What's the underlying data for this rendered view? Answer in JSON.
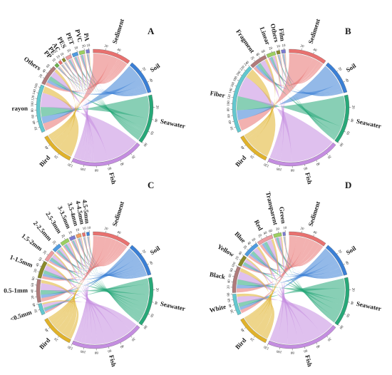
{
  "chart_data": [
    {
      "panel": "A",
      "type": "chord",
      "targets": [
        {
          "name": "Sediment",
          "color": "#e8716f",
          "total": 63,
          "ticks": [
            20,
            40
          ]
        },
        {
          "name": "Soil",
          "color": "#3a7fd5",
          "total": 57,
          "ticks": [
            20,
            40
          ]
        },
        {
          "name": "Seawater",
          "color": "#27a878",
          "total": 81,
          "ticks": [
            20,
            40,
            60,
            80
          ]
        },
        {
          "name": "Fish",
          "color": "#c48de0",
          "total": 120,
          "ticks": [
            20,
            40,
            60,
            80,
            100,
            120
          ]
        },
        {
          "name": "Bird",
          "color": "#e0b22a",
          "total": 55,
          "ticks": [
            20,
            40
          ]
        }
      ],
      "sources": [
        {
          "name": "rayon",
          "color": "#63c8cf",
          "total": 170,
          "ticks": [
            20,
            40,
            60,
            80,
            100,
            120,
            140,
            160
          ]
        },
        {
          "name": "Others",
          "color": "#b07a7a",
          "total": 72,
          "ticks": [
            20,
            40,
            60
          ]
        },
        {
          "name": "PP",
          "color": "#6ab04c",
          "total": 12,
          "ticks": [
            10
          ]
        },
        {
          "name": "PE",
          "color": "#e8716f",
          "total": 10,
          "ticks": [
            10
          ]
        },
        {
          "name": "AC",
          "color": "#8a8a2a",
          "total": 10,
          "ticks": [
            10
          ]
        },
        {
          "name": "PES",
          "color": "#ed9ca0",
          "total": 20,
          "ticks": [
            20
          ]
        },
        {
          "name": "PET",
          "color": "#4e9be0",
          "total": 20,
          "ticks": [
            20
          ]
        },
        {
          "name": "PVC",
          "color": "#9ccf60",
          "total": 20,
          "ticks": [
            20
          ]
        },
        {
          "name": "PA",
          "color": "#7b7bd0",
          "total": 12,
          "ticks": [
            10
          ]
        }
      ]
    },
    {
      "panel": "B",
      "type": "chord",
      "targets": [
        {
          "name": "Sediment",
          "color": "#e8716f",
          "total": 63,
          "ticks": [
            20,
            40
          ]
        },
        {
          "name": "Soil",
          "color": "#3a7fd5",
          "total": 57,
          "ticks": [
            20,
            40
          ]
        },
        {
          "name": "Seawater",
          "color": "#27a878",
          "total": 81,
          "ticks": [
            20,
            40,
            60,
            80
          ]
        },
        {
          "name": "Fish",
          "color": "#c48de0",
          "total": 120,
          "ticks": [
            20,
            40,
            60,
            80,
            100,
            120
          ]
        },
        {
          "name": "Bird",
          "color": "#e0b22a",
          "total": 55,
          "ticks": [
            20,
            40
          ]
        }
      ],
      "sources": [
        {
          "name": "Fiber",
          "color": "#63c8cf",
          "total": 240,
          "ticks": [
            20,
            40,
            60,
            80,
            100,
            120,
            140,
            160,
            180,
            200,
            220,
            240
          ]
        },
        {
          "name": "Fragment",
          "color": "#b07a7a",
          "total": 60,
          "ticks": [
            20,
            40,
            60
          ]
        },
        {
          "name": "Linear",
          "color": "#9ccf60",
          "total": 30,
          "ticks": [
            20
          ]
        },
        {
          "name": "Others",
          "color": "#8a8a2a",
          "total": 12,
          "ticks": [
            10
          ]
        },
        {
          "name": "Film",
          "color": "#7b7bd0",
          "total": 14,
          "ticks": [
            10
          ]
        }
      ]
    },
    {
      "panel": "C",
      "type": "chord",
      "targets": [
        {
          "name": "Sediment",
          "color": "#e8716f",
          "total": 63,
          "ticks": [
            20,
            40
          ]
        },
        {
          "name": "Soil",
          "color": "#3a7fd5",
          "total": 57,
          "ticks": [
            20,
            40
          ]
        },
        {
          "name": "Seawater",
          "color": "#27a878",
          "total": 81,
          "ticks": [
            20,
            40,
            60,
            80
          ]
        },
        {
          "name": "Fish",
          "color": "#c48de0",
          "total": 120,
          "ticks": [
            20,
            40,
            60,
            80,
            100,
            120
          ]
        },
        {
          "name": "Bird",
          "color": "#e0b22a",
          "total": 55,
          "ticks": [
            20,
            40
          ]
        }
      ],
      "sources": [
        {
          "name": "<0.5mm",
          "color": "#63c8cf",
          "total": 40,
          "ticks": [
            20,
            40
          ]
        },
        {
          "name": "0.5-1mm",
          "color": "#b07a7a",
          "total": 81,
          "ticks": [
            20,
            40,
            60,
            80
          ]
        },
        {
          "name": "1-1.5mm",
          "color": "#8a8a2a",
          "total": 61,
          "ticks": [
            20,
            40,
            60
          ]
        },
        {
          "name": "1.5-2mm",
          "color": "#ed9ca0",
          "total": 39,
          "ticks": [
            20
          ]
        },
        {
          "name": "2-2.5mm",
          "color": "#4e9be0",
          "total": 30,
          "ticks": [
            20
          ]
        },
        {
          "name": "2.5-3mm",
          "color": "#9ccf60",
          "total": 30,
          "ticks": [
            20
          ]
        },
        {
          "name": "3-3.5mm",
          "color": "#7b7bd0",
          "total": 20,
          "ticks": [
            10
          ]
        },
        {
          "name": "3.5-4mm",
          "color": "#f0a060",
          "total": 17,
          "ticks": [
            10
          ]
        },
        {
          "name": "4-4.5mm",
          "color": "#e8716f",
          "total": 10,
          "ticks": [
            10
          ]
        },
        {
          "name": "4.5-5mm",
          "color": "#3a7fd5",
          "total": 10,
          "ticks": [
            10
          ]
        }
      ]
    },
    {
      "panel": "D",
      "type": "chord",
      "targets": [
        {
          "name": "Sediment",
          "color": "#e8716f",
          "total": 63,
          "ticks": [
            20,
            40
          ]
        },
        {
          "name": "Soil",
          "color": "#3a7fd5",
          "total": 57,
          "ticks": [
            20,
            40
          ]
        },
        {
          "name": "Seawater",
          "color": "#27a878",
          "total": 81,
          "ticks": [
            20,
            40,
            60,
            80
          ]
        },
        {
          "name": "Fish",
          "color": "#c48de0",
          "total": 120,
          "ticks": [
            20,
            40,
            60,
            80,
            100,
            120
          ]
        },
        {
          "name": "Bird",
          "color": "#e0b22a",
          "total": 55,
          "ticks": [
            20,
            40
          ]
        }
      ],
      "sources": [
        {
          "name": "White",
          "color": "#63c8cf",
          "total": 80,
          "ticks": [
            20,
            40,
            60,
            80
          ]
        },
        {
          "name": "Black",
          "color": "#b07a7a",
          "total": 100,
          "ticks": [
            20,
            40,
            60,
            80,
            100
          ]
        },
        {
          "name": "Yellow",
          "color": "#8a8a2a",
          "total": 41,
          "ticks": [
            20,
            40
          ]
        },
        {
          "name": "Blue",
          "color": "#4e9be0",
          "total": 60,
          "ticks": [
            20,
            40,
            60
          ]
        },
        {
          "name": "Red",
          "color": "#ed9ca0",
          "total": 60,
          "ticks": [
            20,
            40,
            60
          ]
        },
        {
          "name": "Transparent",
          "color": "#9ccf60",
          "total": 30,
          "ticks": [
            20
          ]
        },
        {
          "name": "Green",
          "color": "#7b7bd0",
          "total": 10,
          "ticks": [
            10
          ]
        }
      ]
    }
  ]
}
